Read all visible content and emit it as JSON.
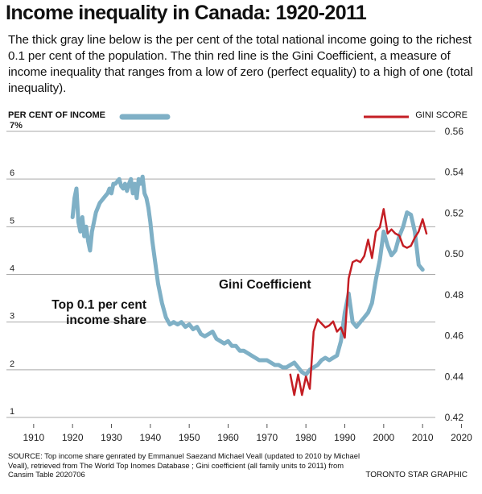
{
  "header": {
    "title": "Income inequality in Canada: 1920-2011",
    "subtitle": "The thick gray line below is the per cent of the total national income going to the richest 0.1 per cent of the population. The thin red line is the Gini Coefficient, a measure of income inequality that ranges from a low of zero (perfect equality) to a high of one (total inequality)."
  },
  "legend": {
    "left_label": "PER CENT OF INCOME",
    "right_label": "GINI SCORE"
  },
  "footer": {
    "source": "SOURCE: Top income share genrated by Emmanuel Saezand Michael Veall (updated to 2010 by Michael Veall), retrieved from The World Top Inomes Database ; Gini coefficient (all family units to 2011) from Cansim Table 2020706",
    "credit": "TORONTO STAR GRAPHIC"
  },
  "colors": {
    "top_share": "#7fb0c6",
    "gini": "#c41e24",
    "grid": "#a9a9a9"
  },
  "chart_data": {
    "type": "line",
    "xlim": [
      1903,
      2023
    ],
    "x_ticks": [
      1910,
      1920,
      1930,
      1940,
      1950,
      1960,
      1970,
      1980,
      1990,
      2000,
      2010,
      2020
    ],
    "left_axis": {
      "ylim": [
        1,
        7
      ],
      "ticks": [
        1,
        2,
        3,
        4,
        5,
        6,
        7
      ],
      "tick_labels": [
        "1",
        "2",
        "3",
        "4",
        "5",
        "6",
        "7%"
      ]
    },
    "right_axis": {
      "ylim": [
        0.42,
        0.56
      ],
      "ticks": [
        0.42,
        0.44,
        0.46,
        0.48,
        0.5,
        0.52,
        0.54,
        0.56
      ],
      "tick_labels": [
        "0.42",
        "0.44",
        "0.46",
        "0.48",
        "0.50",
        "0.52",
        "0.54",
        "0.56"
      ]
    },
    "series": [
      {
        "name": "Top 0.1 per cent income share",
        "axis": "left",
        "label_lines": [
          "Top 0.1 per cent",
          "income share"
        ],
        "x": [
          1920,
          1920.5,
          1921,
          1921.5,
          1922,
          1922.5,
          1923,
          1923.5,
          1924,
          1924.5,
          1925,
          1925.5,
          1926,
          1927,
          1928,
          1929,
          1929.5,
          1930,
          1930.5,
          1931,
          1931.5,
          1932,
          1932.5,
          1933,
          1933.5,
          1934,
          1934.5,
          1935,
          1935.5,
          1936,
          1936.5,
          1937,
          1937.5,
          1938,
          1938.5,
          1939,
          1939.5,
          1940,
          1940.5,
          1941,
          1941.5,
          1942,
          1943,
          1944,
          1945,
          1946,
          1947,
          1948,
          1949,
          1950,
          1951,
          1952,
          1953,
          1954,
          1955,
          1956,
          1957,
          1958,
          1959,
          1960,
          1961,
          1962,
          1963,
          1964,
          1965,
          1966,
          1967,
          1968,
          1969,
          1970,
          1971,
          1972,
          1973,
          1974,
          1975,
          1976,
          1977,
          1978,
          1979,
          1980,
          1981,
          1982,
          1983,
          1984,
          1985,
          1986,
          1987,
          1988,
          1989,
          1990,
          1991,
          1992,
          1993,
          1994,
          1995,
          1996,
          1997,
          1998,
          1999,
          2000,
          2001,
          2002,
          2003,
          2004,
          2005,
          2006,
          2007,
          2008,
          2009,
          2010
        ],
        "values": [
          5.2,
          5.6,
          5.8,
          5.1,
          4.9,
          5.2,
          4.8,
          5.0,
          4.7,
          4.5,
          4.9,
          5.1,
          5.3,
          5.5,
          5.6,
          5.7,
          5.8,
          5.7,
          5.9,
          5.9,
          5.95,
          6.0,
          5.85,
          5.8,
          5.9,
          5.75,
          5.9,
          6.0,
          5.7,
          5.9,
          5.6,
          6.0,
          5.9,
          6.05,
          5.7,
          5.6,
          5.4,
          5.1,
          4.7,
          4.4,
          4.1,
          3.8,
          3.4,
          3.1,
          2.95,
          3.0,
          2.95,
          3.0,
          2.9,
          2.95,
          2.85,
          2.9,
          2.75,
          2.7,
          2.75,
          2.8,
          2.65,
          2.6,
          2.55,
          2.6,
          2.5,
          2.5,
          2.4,
          2.4,
          2.35,
          2.3,
          2.25,
          2.2,
          2.2,
          2.2,
          2.15,
          2.1,
          2.1,
          2.05,
          2.05,
          2.1,
          2.15,
          2.05,
          1.95,
          1.9,
          2.0,
          2.05,
          2.1,
          2.2,
          2.25,
          2.2,
          2.25,
          2.3,
          2.6,
          3.2,
          3.6,
          3.0,
          2.9,
          3.0,
          3.1,
          3.2,
          3.4,
          3.9,
          4.3,
          4.9,
          4.6,
          4.4,
          4.5,
          4.8,
          5.0,
          5.3,
          5.25,
          4.9,
          4.2,
          4.1
        ]
      },
      {
        "name": "Gini Coefficient",
        "axis": "right",
        "label_lines": [
          "Gini Coefficient"
        ],
        "x": [
          1976,
          1977,
          1978,
          1979,
          1980,
          1981,
          1982,
          1983,
          1984,
          1985,
          1986,
          1987,
          1988,
          1989,
          1990,
          1991,
          1992,
          1993,
          1994,
          1995,
          1996,
          1997,
          1998,
          1999,
          2000,
          2001,
          2002,
          2003,
          2004,
          2005,
          2006,
          2007,
          2008,
          2009,
          2010,
          2011
        ],
        "values": [
          0.441,
          0.431,
          0.441,
          0.431,
          0.44,
          0.434,
          0.462,
          0.468,
          0.466,
          0.464,
          0.465,
          0.467,
          0.462,
          0.464,
          0.459,
          0.488,
          0.496,
          0.497,
          0.496,
          0.499,
          0.507,
          0.498,
          0.511,
          0.513,
          0.522,
          0.51,
          0.512,
          0.51,
          0.509,
          0.504,
          0.503,
          0.504,
          0.508,
          0.511,
          0.517,
          0.51
        ]
      }
    ]
  }
}
